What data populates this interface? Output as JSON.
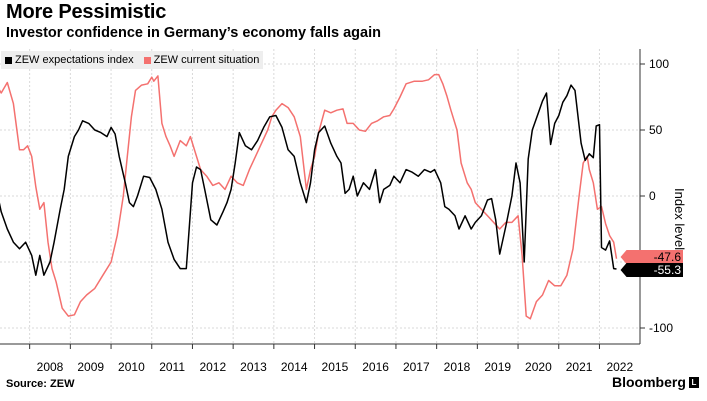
{
  "header": {
    "title": "More Pessimistic",
    "subtitle": "Investor confidence in Germany’s economy falls again"
  },
  "footer": {
    "source": "Source: ZEW",
    "brand": "Bloomberg",
    "brand_mark": "L"
  },
  "colors": {
    "expectations": "#000000",
    "current": "#f4716f",
    "grid": "#d9d9d9",
    "axis": "#333333"
  },
  "chart_data": {
    "type": "line",
    "title": "More Pessimistic",
    "subtitle": "Investor confidence in Germany’s economy falls again",
    "ylabel": "Index level",
    "xlabel": "",
    "ylim": [
      -100,
      100
    ],
    "xlim": [
      2007.0,
      2022.8
    ],
    "y_ticks": [
      100,
      50,
      0,
      -50,
      -100
    ],
    "x_ticks": [
      "2008",
      "2009",
      "2010",
      "2011",
      "2012",
      "2013",
      "2014",
      "2015",
      "2016",
      "2017",
      "2018",
      "2019",
      "2020",
      "2021",
      "2022"
    ],
    "grid": true,
    "legend": {
      "position": "top-left",
      "entries": [
        "ZEW expectations index",
        "ZEW current situation"
      ]
    },
    "series": [
      {
        "name": "ZEW expectations index",
        "color": "#000000",
        "last_value": "-55.3",
        "points": [
          [
            2007.0,
            23
          ],
          [
            2007.15,
            10
          ],
          [
            2007.3,
            -12
          ],
          [
            2007.45,
            -25
          ],
          [
            2007.6,
            -35
          ],
          [
            2007.75,
            -40
          ],
          [
            2007.9,
            -35
          ],
          [
            2008.05,
            -45
          ],
          [
            2008.15,
            -60
          ],
          [
            2008.25,
            -45
          ],
          [
            2008.35,
            -60
          ],
          [
            2008.5,
            -50
          ],
          [
            2008.6,
            -35
          ],
          [
            2008.75,
            -10
          ],
          [
            2008.85,
            5
          ],
          [
            2008.95,
            30
          ],
          [
            2009.1,
            45
          ],
          [
            2009.2,
            50
          ],
          [
            2009.3,
            57
          ],
          [
            2009.45,
            55
          ],
          [
            2009.6,
            50
          ],
          [
            2009.75,
            48
          ],
          [
            2009.9,
            45
          ],
          [
            2010.0,
            52
          ],
          [
            2010.1,
            47
          ],
          [
            2010.2,
            30
          ],
          [
            2010.35,
            10
          ],
          [
            2010.45,
            -5
          ],
          [
            2010.55,
            -8
          ],
          [
            2010.65,
            0
          ],
          [
            2010.8,
            15
          ],
          [
            2010.95,
            14
          ],
          [
            2011.1,
            5
          ],
          [
            2011.25,
            -10
          ],
          [
            2011.4,
            -35
          ],
          [
            2011.55,
            -48
          ],
          [
            2011.7,
            -55
          ],
          [
            2011.85,
            -55
          ],
          [
            2012.0,
            10
          ],
          [
            2012.1,
            22
          ],
          [
            2012.2,
            20
          ],
          [
            2012.3,
            5
          ],
          [
            2012.45,
            -18
          ],
          [
            2012.6,
            -22
          ],
          [
            2012.75,
            -12
          ],
          [
            2012.85,
            -5
          ],
          [
            2012.95,
            5
          ],
          [
            2013.05,
            25
          ],
          [
            2013.15,
            48
          ],
          [
            2013.3,
            38
          ],
          [
            2013.45,
            35
          ],
          [
            2013.6,
            42
          ],
          [
            2013.75,
            52
          ],
          [
            2013.9,
            60
          ],
          [
            2014.05,
            61
          ],
          [
            2014.2,
            52
          ],
          [
            2014.35,
            35
          ],
          [
            2014.5,
            30
          ],
          [
            2014.65,
            10
          ],
          [
            2014.8,
            -5
          ],
          [
            2014.9,
            10
          ],
          [
            2015.0,
            35
          ],
          [
            2015.1,
            48
          ],
          [
            2015.25,
            53
          ],
          [
            2015.4,
            40
          ],
          [
            2015.55,
            30
          ],
          [
            2015.65,
            25
          ],
          [
            2015.75,
            2
          ],
          [
            2015.85,
            5
          ],
          [
            2015.95,
            15
          ],
          [
            2016.05,
            0
          ],
          [
            2016.2,
            10
          ],
          [
            2016.35,
            5
          ],
          [
            2016.5,
            20
          ],
          [
            2016.6,
            -5
          ],
          [
            2016.7,
            5
          ],
          [
            2016.85,
            8
          ],
          [
            2016.95,
            15
          ],
          [
            2017.1,
            10
          ],
          [
            2017.25,
            20
          ],
          [
            2017.4,
            18
          ],
          [
            2017.55,
            15
          ],
          [
            2017.7,
            20
          ],
          [
            2017.85,
            18
          ],
          [
            2017.95,
            20
          ],
          [
            2018.1,
            10
          ],
          [
            2018.2,
            -8
          ],
          [
            2018.3,
            -10
          ],
          [
            2018.45,
            -15
          ],
          [
            2018.55,
            -25
          ],
          [
            2018.7,
            -15
          ],
          [
            2018.85,
            -25
          ],
          [
            2018.95,
            -20
          ],
          [
            2019.1,
            -15
          ],
          [
            2019.25,
            -3
          ],
          [
            2019.35,
            -2
          ],
          [
            2019.45,
            -18
          ],
          [
            2019.55,
            -44
          ],
          [
            2019.7,
            -23
          ],
          [
            2019.85,
            0
          ],
          [
            2019.95,
            25
          ],
          [
            2020.05,
            10
          ],
          [
            2020.15,
            -50
          ],
          [
            2020.25,
            28
          ],
          [
            2020.35,
            50
          ],
          [
            2020.5,
            63
          ],
          [
            2020.6,
            72
          ],
          [
            2020.7,
            78
          ],
          [
            2020.8,
            39
          ],
          [
            2020.9,
            55
          ],
          [
            2021.0,
            61
          ],
          [
            2021.1,
            71
          ],
          [
            2021.2,
            76
          ],
          [
            2021.3,
            84
          ],
          [
            2021.4,
            80
          ],
          [
            2021.55,
            40
          ],
          [
            2021.65,
            27
          ],
          [
            2021.75,
            32
          ],
          [
            2021.85,
            29
          ],
          [
            2021.92,
            53
          ],
          [
            2022.0,
            54
          ],
          [
            2022.05,
            -39
          ],
          [
            2022.15,
            -41
          ],
          [
            2022.25,
            -34
          ],
          [
            2022.35,
            -55
          ],
          [
            2022.42,
            -55.3
          ]
        ]
      },
      {
        "name": "ZEW current situation",
        "color": "#f4716f",
        "last_value": "-47.6",
        "points": [
          [
            2007.0,
            89
          ],
          [
            2007.15,
            86
          ],
          [
            2007.3,
            78
          ],
          [
            2007.45,
            86
          ],
          [
            2007.6,
            70
          ],
          [
            2007.75,
            35
          ],
          [
            2007.85,
            35
          ],
          [
            2007.95,
            38
          ],
          [
            2008.05,
            30
          ],
          [
            2008.15,
            7
          ],
          [
            2008.25,
            -10
          ],
          [
            2008.35,
            -5
          ],
          [
            2008.45,
            -35
          ],
          [
            2008.55,
            -55
          ],
          [
            2008.65,
            -65
          ],
          [
            2008.8,
            -85
          ],
          [
            2008.95,
            -91
          ],
          [
            2009.1,
            -90
          ],
          [
            2009.25,
            -80
          ],
          [
            2009.4,
            -75
          ],
          [
            2009.6,
            -70
          ],
          [
            2009.8,
            -60
          ],
          [
            2010.0,
            -50
          ],
          [
            2010.15,
            -30
          ],
          [
            2010.3,
            0
          ],
          [
            2010.4,
            30
          ],
          [
            2010.5,
            60
          ],
          [
            2010.6,
            80
          ],
          [
            2010.75,
            84
          ],
          [
            2010.9,
            85
          ],
          [
            2011.0,
            90
          ],
          [
            2011.05,
            87
          ],
          [
            2011.15,
            91
          ],
          [
            2011.25,
            55
          ],
          [
            2011.35,
            45
          ],
          [
            2011.45,
            38
          ],
          [
            2011.55,
            30
          ],
          [
            2011.7,
            42
          ],
          [
            2011.85,
            38
          ],
          [
            2011.95,
            45
          ],
          [
            2012.1,
            30
          ],
          [
            2012.2,
            20
          ],
          [
            2012.35,
            15
          ],
          [
            2012.5,
            8
          ],
          [
            2012.65,
            10
          ],
          [
            2012.8,
            5
          ],
          [
            2012.95,
            15
          ],
          [
            2013.1,
            10
          ],
          [
            2013.25,
            8
          ],
          [
            2013.4,
            20
          ],
          [
            2013.55,
            30
          ],
          [
            2013.7,
            40
          ],
          [
            2013.85,
            50
          ],
          [
            2013.95,
            60
          ],
          [
            2014.05,
            65
          ],
          [
            2014.2,
            70
          ],
          [
            2014.35,
            67
          ],
          [
            2014.5,
            60
          ],
          [
            2014.65,
            45
          ],
          [
            2014.8,
            5
          ],
          [
            2014.9,
            20
          ],
          [
            2015.0,
            30
          ],
          [
            2015.1,
            48
          ],
          [
            2015.25,
            65
          ],
          [
            2015.4,
            63
          ],
          [
            2015.55,
            65
          ],
          [
            2015.7,
            66
          ],
          [
            2015.8,
            55
          ],
          [
            2015.95,
            55
          ],
          [
            2016.1,
            50
          ],
          [
            2016.25,
            49
          ],
          [
            2016.4,
            55
          ],
          [
            2016.55,
            57
          ],
          [
            2016.7,
            60
          ],
          [
            2016.85,
            61
          ],
          [
            2016.95,
            66
          ],
          [
            2017.1,
            75
          ],
          [
            2017.25,
            85
          ],
          [
            2017.45,
            87
          ],
          [
            2017.65,
            87
          ],
          [
            2017.8,
            88
          ],
          [
            2017.95,
            92
          ],
          [
            2018.05,
            92
          ],
          [
            2018.15,
            85
          ],
          [
            2018.25,
            76
          ],
          [
            2018.35,
            65
          ],
          [
            2018.5,
            50
          ],
          [
            2018.6,
            25
          ],
          [
            2018.75,
            10
          ],
          [
            2018.85,
            5
          ],
          [
            2018.95,
            -5
          ],
          [
            2019.1,
            -10
          ],
          [
            2019.25,
            -15
          ],
          [
            2019.4,
            -20
          ],
          [
            2019.55,
            -25
          ],
          [
            2019.7,
            -20
          ],
          [
            2019.85,
            -20
          ],
          [
            2020.0,
            -15
          ],
          [
            2020.1,
            -45
          ],
          [
            2020.2,
            -91
          ],
          [
            2020.3,
            -93
          ],
          [
            2020.45,
            -80
          ],
          [
            2020.6,
            -75
          ],
          [
            2020.75,
            -64
          ],
          [
            2020.9,
            -68
          ],
          [
            2021.05,
            -68
          ],
          [
            2021.2,
            -60
          ],
          [
            2021.35,
            -40
          ],
          [
            2021.5,
            0
          ],
          [
            2021.6,
            25
          ],
          [
            2021.7,
            30
          ],
          [
            2021.75,
            20
          ],
          [
            2021.85,
            10
          ],
          [
            2021.95,
            -10
          ],
          [
            2022.05,
            -8
          ],
          [
            2022.15,
            -21
          ],
          [
            2022.25,
            -30
          ],
          [
            2022.35,
            -35
          ],
          [
            2022.42,
            -47.6
          ]
        ]
      }
    ]
  }
}
